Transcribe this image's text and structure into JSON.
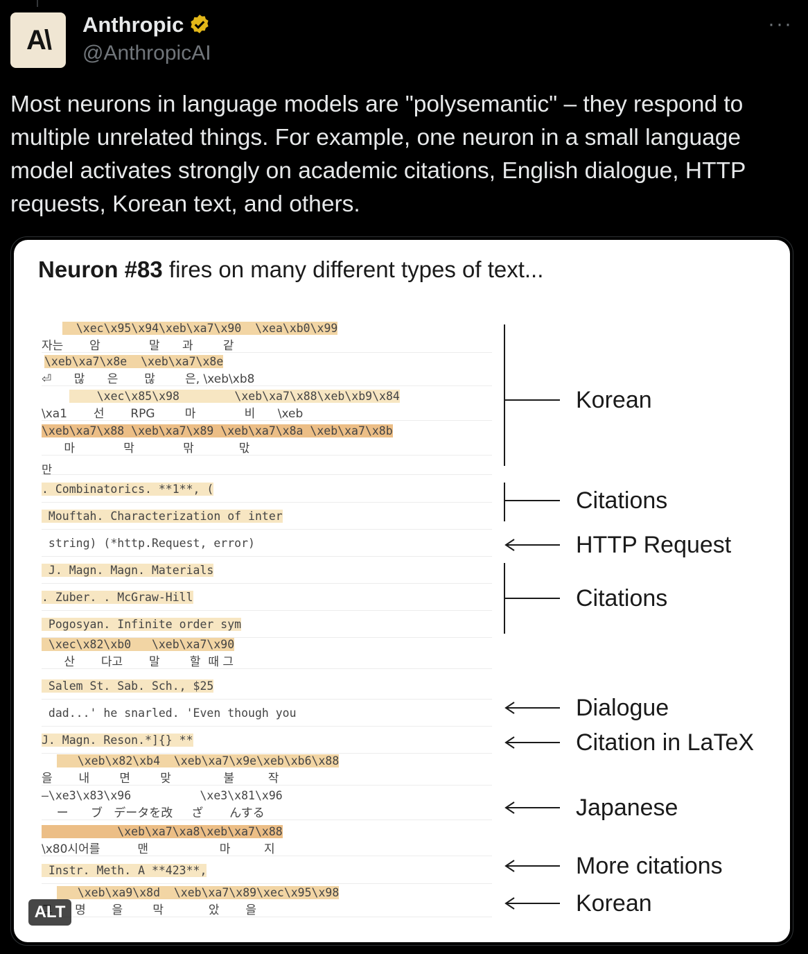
{
  "author": {
    "name": "Anthropic",
    "handle": "@AnthropicAI",
    "avatar_text": "A\\",
    "verified": true,
    "verified_color": "#e2b719"
  },
  "tweet": {
    "text": "Most neurons in language models are \"polysemantic\" – they respond to multiple unrelated things. For example, one neuron in a small language model activates strongly on academic citations, English dialogue, HTTP requests, Korean text, and others."
  },
  "more_label": "···",
  "alt_badge": "ALT",
  "figure": {
    "title_bold": "Neuron #83",
    "title_rest": " fires on many different types of text...",
    "rows": [
      {
        "code": "  \\xec\\x95\\x94\\xeb\\xa7\\x90  \\xea\\xb0\\x99",
        "sub": "자는       암             말      과        같"
      },
      {
        "code": "\\xeb\\xa7\\x8e  \\xeb\\xa7\\x8e",
        "sub": "⏎      많      은       많        은, \\xeb\\xb8"
      },
      {
        "code": "    \\xec\\x85\\x98        \\xeb\\xa7\\x88\\xeb\\xb9\\x84",
        "sub": "\\xa1       선       RPG        마             비      \\xeb"
      },
      {
        "code": "\\xeb\\xa7\\x88 \\xeb\\xa7\\x89 \\xeb\\xa7\\x8a \\xeb\\xa7\\x8b",
        "sub": "      마             막             맊            맋"
      },
      {
        "code": "만"
      },
      {
        "code": ". Combinatorics. **1**, ("
      },
      {
        "code": " Mouftah. Characterization of inter"
      },
      {
        "code": " string) (*http.Request, error)"
      },
      {
        "code": " J. Magn. Magn. Materials"
      },
      {
        "code": ". Zuber. . McGraw-Hill"
      },
      {
        "code": " Pogosyan. Infinite order sym"
      },
      {
        "code": " \\xec\\x82\\xb0   \\xeb\\xa7\\x90",
        "sub": "      산       다고       말        할  때 그"
      },
      {
        "code": " Salem St. Sab. Sch., $25"
      },
      {
        "code": " dad...' he snarled. 'Even though you"
      },
      {
        "code": "J. Magn. Reson.*]{} **"
      },
      {
        "code": "   \\xeb\\x82\\xb4  \\xeb\\xa7\\x9e\\xeb\\xb6\\x88",
        "sub": "을       내        면        맞              불         작"
      },
      {
        "code": "—\\xe3\\x83\\x96          \\xe3\\x81\\x96",
        "sub": "    ー      ブ   データを改     ざ       んする"
      },
      {
        "code": "           \\xeb\\xa7\\xa8\\xeb\\xa7\\x88",
        "sub": "\\x80시어를          맨                   마         지"
      },
      {
        "code": " Instr. Meth. A **423**,"
      },
      {
        "code": "   \\xeb\\xa9\\x8d  \\xeb\\xa7\\x89\\xec\\x95\\x98",
        "sub": "그      명       을        막            았       을"
      }
    ],
    "annotations": [
      "Korean",
      "Citations",
      "HTTP Request",
      "Citations",
      "Dialogue",
      "Citation in LaTeX",
      "Japanese",
      "More citations",
      "Korean"
    ]
  }
}
